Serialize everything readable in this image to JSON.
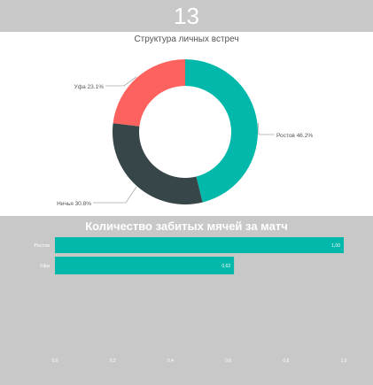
{
  "kpi": {
    "value": "13"
  },
  "donut": {
    "title": "Структура личных встреч"
  },
  "bar": {
    "title": "Количество забитых мячей за матч"
  },
  "colors": {
    "banner_bg": "#c8c8c8",
    "teal": "#01b8aa",
    "dark": "#374649",
    "coral": "#fd625e",
    "label_text": "#555555"
  },
  "chart_data": [
    {
      "type": "pie",
      "subtype": "donut",
      "title": "Структура личных встреч",
      "labels": [
        "Ростов",
        "Ничья",
        "Уфа"
      ],
      "values": [
        46.2,
        30.8,
        23.1
      ],
      "data_labels": [
        "Ростов 46.2%",
        "Ничья 30.8%",
        "Уфа 23.1%"
      ],
      "colors": [
        "#01b8aa",
        "#374649",
        "#fd625e"
      ]
    },
    {
      "type": "bar",
      "orientation": "horizontal",
      "title": "Количество забитых мячей за матч",
      "categories": [
        "Ростов",
        "Уфа"
      ],
      "values": [
        1.0,
        0.62
      ],
      "data_labels": [
        "1,00",
        "0,62"
      ],
      "xlim": [
        0,
        1.0
      ],
      "x_ticks": [
        "0,0",
        "0,2",
        "0,4",
        "0,6",
        "0,8",
        "1,0"
      ],
      "color": "#01b8aa",
      "grid": false
    }
  ]
}
